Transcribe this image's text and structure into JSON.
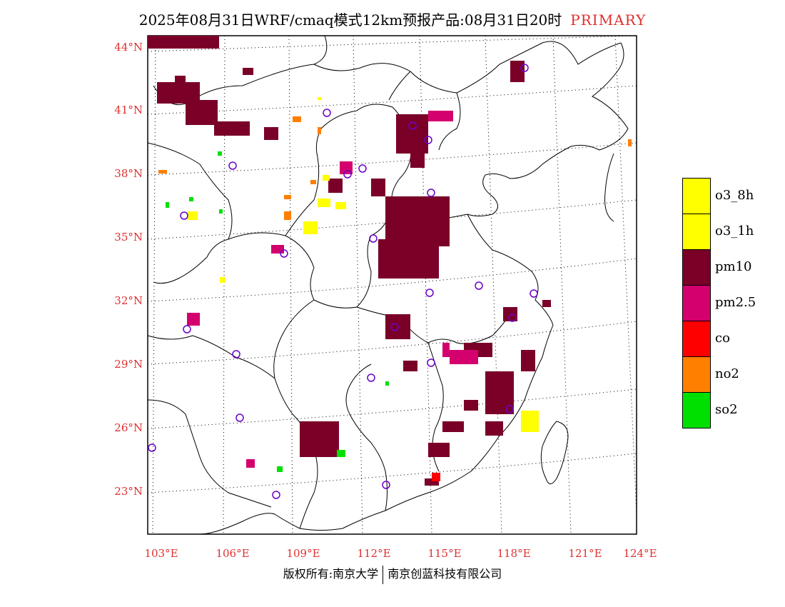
{
  "header": {
    "title": "2025年08月31日WRF/cmaq模式12km预报产品:08月31日20时",
    "tag": "PRIMARY"
  },
  "axes": {
    "lat_ticks": [
      "44°N",
      "41°N",
      "38°N",
      "35°N",
      "32°N",
      "29°N",
      "26°N",
      "23°N"
    ],
    "lon_ticks": [
      "103°E",
      "106°E",
      "109°E",
      "112°E",
      "115°E",
      "118°E",
      "121°E",
      "124°E"
    ]
  },
  "legend": [
    {
      "label": "o3_8h",
      "color": "#ffff00"
    },
    {
      "label": "o3_1h",
      "color": "#ffff00"
    },
    {
      "label": "pm10",
      "color": "#7a0028"
    },
    {
      "label": "pm2.5",
      "color": "#d4006e"
    },
    {
      "label": "co",
      "color": "#ff0000"
    },
    {
      "label": "no2",
      "color": "#ff7f00"
    },
    {
      "label": "so2",
      "color": "#00e000"
    }
  ],
  "footer": {
    "left": "版权所有:南京大学",
    "right": "南京创蓝科技有限公司"
  },
  "colors": {
    "accent": "#e03030",
    "site_marker": "#6a00c8",
    "border_line": "#000000"
  }
}
